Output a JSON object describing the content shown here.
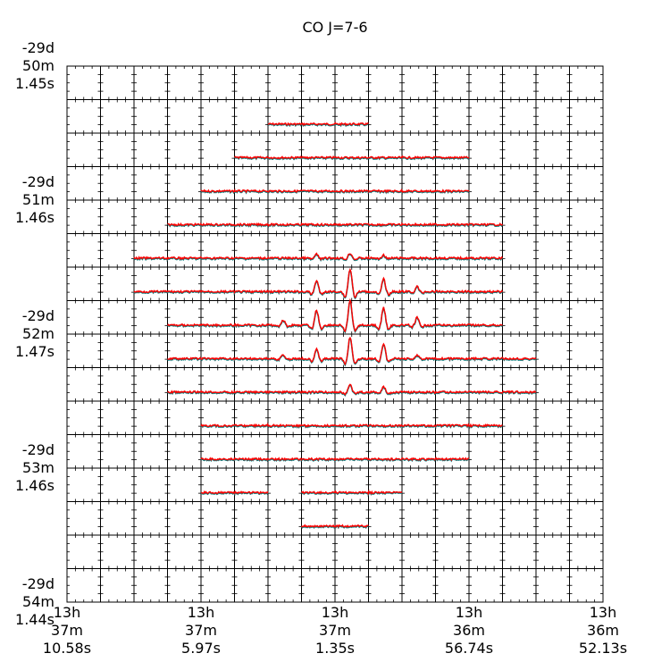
{
  "chart_data": {
    "type": "line",
    "title": "CO J=7-6",
    "grid": {
      "rows": 16,
      "cols": 16
    },
    "y_tick_labels": [
      {
        "row_boundary": 0,
        "lines": [
          "-29d",
          "50m",
          "1.45s"
        ]
      },
      {
        "row_boundary": 4,
        "lines": [
          "-29d",
          "51m",
          "1.46s"
        ]
      },
      {
        "row_boundary": 8,
        "lines": [
          "-29d",
          "52m",
          "1.47s"
        ]
      },
      {
        "row_boundary": 12,
        "lines": [
          "-29d",
          "53m",
          "1.46s"
        ]
      },
      {
        "row_boundary": 16,
        "lines": [
          "-29d",
          "54m",
          "1.44s"
        ]
      }
    ],
    "x_tick_labels": [
      {
        "col_boundary": 0,
        "lines": [
          "13h",
          "37m",
          "10.58s"
        ]
      },
      {
        "col_boundary": 4,
        "lines": [
          "13h",
          "37m",
          "5.97s"
        ]
      },
      {
        "col_boundary": 8,
        "lines": [
          "13h",
          "37m",
          "1.35s"
        ]
      },
      {
        "col_boundary": 12,
        "lines": [
          "13h",
          "36m",
          "56.74s"
        ]
      },
      {
        "col_boundary": 16,
        "lines": [
          "13h",
          "36m",
          "52.13s"
        ]
      }
    ],
    "spectra_rows": [
      {
        "row": 1,
        "segments": [
          [
            6,
            9
          ]
        ]
      },
      {
        "row": 2,
        "segments": [
          [
            5,
            12
          ]
        ]
      },
      {
        "row": 3,
        "segments": [
          [
            4,
            12
          ]
        ]
      },
      {
        "row": 4,
        "segments": [
          [
            3,
            13
          ]
        ]
      },
      {
        "row": 5,
        "segments": [
          [
            2,
            13
          ]
        ]
      },
      {
        "row": 6,
        "segments": [
          [
            2,
            13
          ]
        ]
      },
      {
        "row": 7,
        "segments": [
          [
            3,
            13
          ]
        ]
      },
      {
        "row": 8,
        "segments": [
          [
            3,
            14
          ]
        ]
      },
      {
        "row": 9,
        "segments": [
          [
            3,
            14
          ]
        ]
      },
      {
        "row": 10,
        "segments": [
          [
            4,
            13
          ]
        ]
      },
      {
        "row": 11,
        "segments": [
          [
            4,
            12
          ]
        ]
      },
      {
        "row": 12,
        "segments": [
          [
            4,
            6
          ],
          [
            7,
            10
          ]
        ]
      },
      {
        "row": 13,
        "segments": [
          [
            7,
            9
          ]
        ]
      }
    ],
    "peak_strength": [
      {
        "row": 5,
        "col": 7,
        "strength": 0.15
      },
      {
        "row": 5,
        "col": 8,
        "strength": 0.2
      },
      {
        "row": 5,
        "col": 9,
        "strength": 0.12
      },
      {
        "row": 6,
        "col": 7,
        "strength": 0.45
      },
      {
        "row": 6,
        "col": 8,
        "strength": 0.9
      },
      {
        "row": 6,
        "col": 9,
        "strength": 0.5
      },
      {
        "row": 6,
        "col": 10,
        "strength": 0.2
      },
      {
        "row": 7,
        "col": 6,
        "strength": 0.2
      },
      {
        "row": 7,
        "col": 7,
        "strength": 0.6
      },
      {
        "row": 7,
        "col": 8,
        "strength": 1.0
      },
      {
        "row": 7,
        "col": 9,
        "strength": 0.7
      },
      {
        "row": 7,
        "col": 10,
        "strength": 0.3
      },
      {
        "row": 8,
        "col": 6,
        "strength": 0.15
      },
      {
        "row": 8,
        "col": 7,
        "strength": 0.4
      },
      {
        "row": 8,
        "col": 8,
        "strength": 0.85
      },
      {
        "row": 8,
        "col": 9,
        "strength": 0.6
      },
      {
        "row": 8,
        "col": 10,
        "strength": 0.15
      },
      {
        "row": 9,
        "col": 8,
        "strength": 0.3
      },
      {
        "row": 9,
        "col": 9,
        "strength": 0.2
      }
    ],
    "line_colors": {
      "primary": "#ff0000",
      "secondary": "#008080"
    },
    "grid_color": "#000000"
  }
}
